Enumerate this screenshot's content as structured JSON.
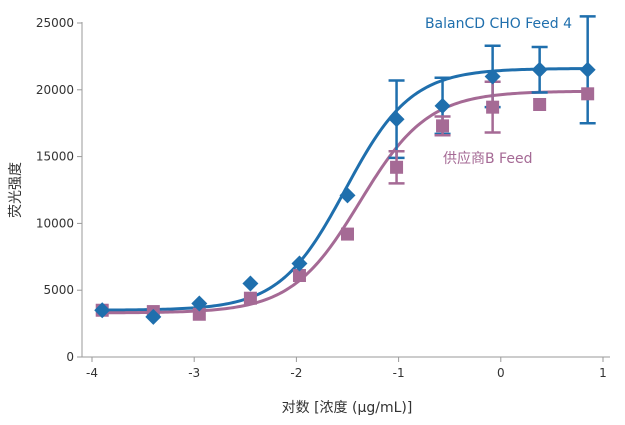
{
  "chart_data": {
    "type": "scatter",
    "xlabel": "对数 [浓度 (μg/mL)]",
    "ylabel": "荧光强度",
    "xlim": [
      -4,
      1
    ],
    "ylim": [
      0,
      25000
    ],
    "x_ticks": [
      "-4",
      "-3",
      "-2",
      "-1",
      "0",
      "1"
    ],
    "y_ticks": [
      "0",
      "5000",
      "10000",
      "15000",
      "20000",
      "25000"
    ],
    "grid": false,
    "series": [
      {
        "name": "BalanCD CHO Feed 4",
        "color": "#1f6fad",
        "marker": "diamond",
        "x": [
          -3.9,
          -3.4,
          -2.95,
          -2.45,
          -1.97,
          -1.5,
          -1.02,
          -0.57,
          -0.08,
          0.38,
          0.85
        ],
        "y": [
          3500,
          3000,
          4000,
          5500,
          7000,
          12100,
          17800,
          18800,
          21000,
          21500,
          21500
        ],
        "err": [
          0,
          0,
          0,
          0,
          0,
          0,
          2900,
          2100,
          2300,
          1700,
          4000
        ],
        "fit": {
          "bottom": 3500,
          "top": 21600,
          "ec50": -1.52,
          "hill": 1.35
        }
      },
      {
        "name": "供应商B Feed",
        "color": "#a56a95",
        "marker": "square",
        "x": [
          -3.9,
          -3.4,
          -2.95,
          -2.45,
          -1.97,
          -1.5,
          -1.02,
          -0.57,
          -0.08,
          0.38,
          0.85
        ],
        "y": [
          3500,
          3400,
          3200,
          4400,
          6100,
          9200,
          14200,
          17300,
          18700,
          18900,
          19700
        ],
        "err": [
          0,
          0,
          0,
          0,
          0,
          0,
          1200,
          700,
          1900,
          0,
          0
        ],
        "fit": {
          "bottom": 3300,
          "top": 19900,
          "ec50": -1.38,
          "hill": 1.3
        }
      }
    ]
  }
}
